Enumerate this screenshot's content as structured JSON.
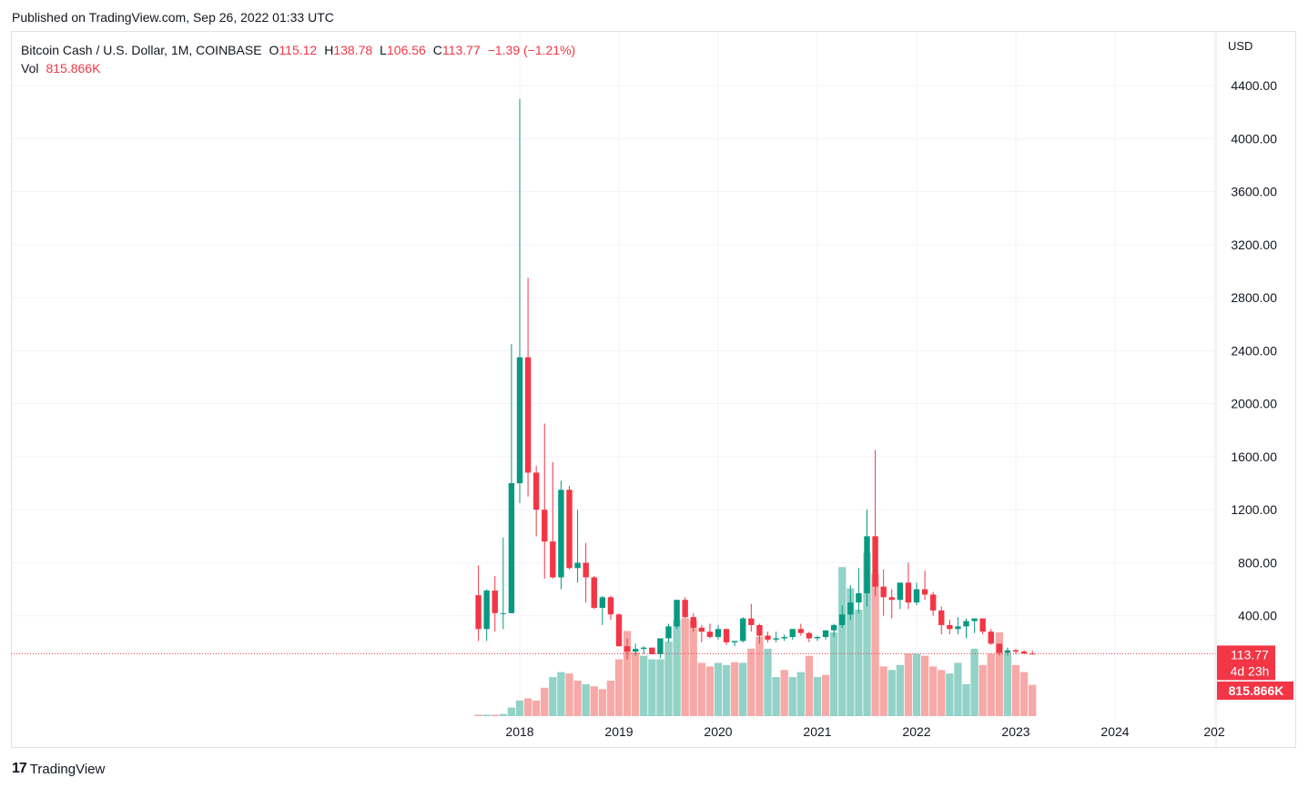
{
  "header": {
    "published": "Published on TradingView.com, Sep 26, 2022 01:33 UTC"
  },
  "legend": {
    "symbol": "Bitcoin Cash / U.S. Dollar, 1M, COINBASE",
    "o_label": "O",
    "o": "115.12",
    "h_label": "H",
    "h": "138.78",
    "l_label": "L",
    "l": "106.56",
    "c_label": "C",
    "c": "113.77",
    "change": "−1.39 (−1.21%)",
    "vol_label": "Vol",
    "vol": "815.866K"
  },
  "axis": {
    "currency": "USD",
    "price_labels": [
      "4400.00",
      "4000.00",
      "3600.00",
      "3200.00",
      "2800.00",
      "2400.00",
      "2000.00",
      "1600.00",
      "1200.00",
      "800.00",
      "400.00"
    ],
    "year_labels": [
      "2018",
      "2019",
      "2020",
      "2021",
      "2022",
      "2023",
      "2024",
      "202"
    ]
  },
  "badges": {
    "last_price": "113.77",
    "countdown": "4d 23h",
    "volume": "815.866K"
  },
  "footer": {
    "brand": "TradingView",
    "logo_glyph": "17"
  },
  "colors": {
    "up": "#089981",
    "down": "#f23645",
    "vol_up": "#92d2c7",
    "vol_down": "#f7a9a7",
    "grid": "#f0f3fa"
  },
  "chart_data": {
    "type": "candlestick",
    "interval": "1M",
    "start": "2017-08",
    "y_range": [
      0,
      4600
    ],
    "x_range_years": [
      2017.0,
      2025.2
    ],
    "grid": true,
    "ohlc": [
      [
        555,
        780,
        210,
        300
      ],
      [
        300,
        600,
        210,
        590
      ],
      [
        590,
        700,
        280,
        420
      ],
      [
        420,
        990,
        300,
        420
      ],
      [
        420,
        2450,
        420,
        1400
      ],
      [
        1400,
        4300,
        1250,
        2350
      ],
      [
        2350,
        2950,
        1300,
        1480
      ],
      [
        1480,
        1530,
        1000,
        1200
      ],
      [
        1200,
        1850,
        680,
        960
      ],
      [
        960,
        1560,
        680,
        690
      ],
      [
        690,
        1420,
        600,
        1350
      ],
      [
        1350,
        1380,
        750,
        760
      ],
      [
        760,
        1200,
        650,
        800
      ],
      [
        800,
        950,
        500,
        690
      ],
      [
        690,
        700,
        450,
        460
      ],
      [
        460,
        550,
        330,
        540
      ],
      [
        540,
        550,
        370,
        410
      ],
      [
        410,
        420,
        190,
        170
      ],
      [
        170,
        230,
        70,
        130
      ],
      [
        130,
        190,
        100,
        150
      ],
      [
        150,
        170,
        110,
        160
      ],
      [
        160,
        160,
        130,
        110
      ],
      [
        110,
        230,
        80,
        230
      ],
      [
        230,
        340,
        200,
        320
      ],
      [
        320,
        480,
        300,
        520
      ],
      [
        520,
        540,
        380,
        390
      ],
      [
        390,
        420,
        280,
        310
      ],
      [
        310,
        330,
        200,
        280
      ],
      [
        280,
        340,
        230,
        240
      ],
      [
        240,
        330,
        220,
        300
      ],
      [
        300,
        300,
        180,
        200
      ],
      [
        200,
        200,
        170,
        210
      ],
      [
        210,
        390,
        200,
        380
      ],
      [
        380,
        490,
        280,
        330
      ],
      [
        330,
        340,
        190,
        250
      ],
      [
        250,
        280,
        200,
        220
      ],
      [
        220,
        280,
        200,
        230
      ],
      [
        230,
        260,
        210,
        240
      ],
      [
        240,
        300,
        220,
        300
      ],
      [
        300,
        340,
        250,
        270
      ],
      [
        270,
        280,
        200,
        230
      ],
      [
        230,
        250,
        210,
        240
      ],
      [
        240,
        290,
        220,
        290
      ],
      [
        290,
        340,
        240,
        330
      ],
      [
        330,
        480,
        310,
        410
      ],
      [
        410,
        630,
        370,
        500
      ],
      [
        500,
        760,
        420,
        570
      ],
      [
        570,
        1200,
        470,
        1000
      ],
      [
        1000,
        1650,
        550,
        620
      ],
      [
        620,
        750,
        400,
        540
      ],
      [
        540,
        600,
        380,
        520
      ],
      [
        520,
        620,
        450,
        650
      ],
      [
        650,
        800,
        450,
        500
      ],
      [
        500,
        650,
        480,
        600
      ],
      [
        600,
        740,
        520,
        560
      ],
      [
        560,
        580,
        400,
        440
      ],
      [
        440,
        470,
        260,
        330
      ],
      [
        330,
        370,
        260,
        300
      ],
      [
        300,
        390,
        260,
        320
      ],
      [
        320,
        380,
        230,
        360
      ],
      [
        360,
        380,
        270,
        380
      ],
      [
        380,
        380,
        260,
        280
      ],
      [
        280,
        300,
        180,
        190
      ],
      [
        190,
        190,
        100,
        120
      ],
      [
        120,
        160,
        100,
        140
      ],
      [
        140,
        150,
        110,
        130
      ],
      [
        130,
        140,
        110,
        115
      ],
      [
        115,
        139,
        107,
        114
      ]
    ],
    "volume": [
      [
        2,
        "d"
      ],
      [
        2,
        "u"
      ],
      [
        2,
        "d"
      ],
      [
        3,
        "u"
      ],
      [
        12,
        "u"
      ],
      [
        22,
        "u"
      ],
      [
        25,
        "d"
      ],
      [
        22,
        "d"
      ],
      [
        40,
        "d"
      ],
      [
        55,
        "u"
      ],
      [
        62,
        "u"
      ],
      [
        60,
        "d"
      ],
      [
        50,
        "d"
      ],
      [
        45,
        "u"
      ],
      [
        42,
        "d"
      ],
      [
        38,
        "d"
      ],
      [
        50,
        "d"
      ],
      [
        80,
        "d"
      ],
      [
        120,
        "d"
      ],
      [
        90,
        "d"
      ],
      [
        85,
        "u"
      ],
      [
        80,
        "u"
      ],
      [
        80,
        "u"
      ],
      [
        105,
        "u"
      ],
      [
        135,
        "u"
      ],
      [
        138,
        "d"
      ],
      [
        135,
        "d"
      ],
      [
        75,
        "d"
      ],
      [
        70,
        "d"
      ],
      [
        75,
        "u"
      ],
      [
        72,
        "u"
      ],
      [
        76,
        "d"
      ],
      [
        75,
        "u"
      ],
      [
        95,
        "d"
      ],
      [
        112,
        "d"
      ],
      [
        95,
        "u"
      ],
      [
        55,
        "u"
      ],
      [
        65,
        "d"
      ],
      [
        55,
        "u"
      ],
      [
        62,
        "u"
      ],
      [
        85,
        "d"
      ],
      [
        55,
        "u"
      ],
      [
        58,
        "d"
      ],
      [
        118,
        "u"
      ],
      [
        210,
        "u"
      ],
      [
        180,
        "u"
      ],
      [
        150,
        "u"
      ],
      [
        230,
        "u"
      ],
      [
        200,
        "d"
      ],
      [
        70,
        "d"
      ],
      [
        65,
        "u"
      ],
      [
        72,
        "u"
      ],
      [
        88,
        "d"
      ],
      [
        88,
        "u"
      ],
      [
        85,
        "d"
      ],
      [
        70,
        "d"
      ],
      [
        65,
        "d"
      ],
      [
        60,
        "u"
      ],
      [
        75,
        "u"
      ],
      [
        45,
        "u"
      ],
      [
        95,
        "u"
      ],
      [
        72,
        "d"
      ],
      [
        88,
        "d"
      ],
      [
        118,
        "d"
      ],
      [
        88,
        "u"
      ],
      [
        72,
        "d"
      ],
      [
        62,
        "d"
      ],
      [
        44,
        "d"
      ]
    ]
  }
}
